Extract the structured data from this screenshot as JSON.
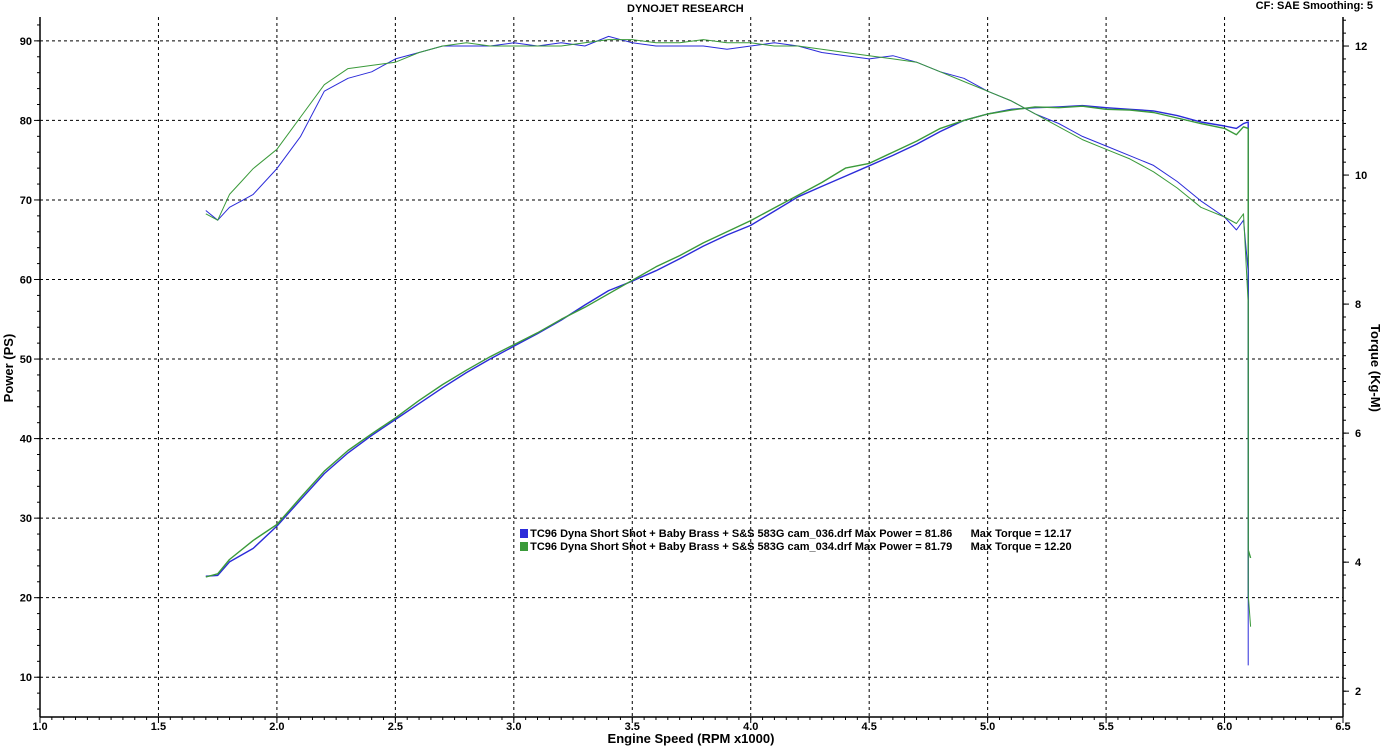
{
  "header": {
    "title": "DYNOJET RESEARCH",
    "cf_info": "CF: SAE  Smoothing: 5"
  },
  "chart_data": {
    "type": "line",
    "title": "DYNOJET RESEARCH",
    "xlabel": "Engine Speed (RPM x1000)",
    "ylabel_left": "Power (PS)",
    "ylabel_right": "Torque (Kg-M)",
    "xlim": [
      1.0,
      6.5
    ],
    "ylim_left": [
      5,
      93
    ],
    "ylim_right": [
      1.6,
      12.45
    ],
    "x_ticks": [
      "1.0",
      "1.5",
      "2.0",
      "2.5",
      "3.0",
      "3.5",
      "4.0",
      "4.5",
      "5.0",
      "5.5",
      "6.0",
      "6.5"
    ],
    "y_ticks_left": [
      "10",
      "20",
      "30",
      "40",
      "50",
      "60",
      "70",
      "80",
      "90"
    ],
    "y_ticks_right": [
      "2",
      "4",
      "6",
      "8",
      "10",
      "12"
    ],
    "grid": true,
    "colors": {
      "blue": "#2b2bd9",
      "green": "#3a9a3a"
    },
    "legend": [
      {
        "name": "TC96 Dyna Short Shot + Baby Brass + S&S 583G cam_036.drf",
        "max_power": "Max Power = 81.86",
        "max_torque": "Max Torque = 12.17",
        "color": "#2b2bd9"
      },
      {
        "name": "TC96 Dyna Short Shot + Baby Brass + S&S 583G cam_034.drf",
        "max_power": "Max Power = 81.79",
        "max_torque": "Max Torque = 12.20",
        "color": "#3a9a3a"
      }
    ],
    "series": [
      {
        "name": "TC96 Dyna Short Shot + Baby Brass + S&S 583G cam_036.drf",
        "quantity": "power",
        "axis": "left",
        "color": "#2b2bd9",
        "x": [
          1.7,
          1.75,
          1.8,
          1.9,
          2.0,
          2.1,
          2.2,
          2.3,
          2.4,
          2.5,
          2.6,
          2.7,
          2.8,
          2.9,
          3.0,
          3.1,
          3.2,
          3.3,
          3.4,
          3.5,
          3.6,
          3.7,
          3.8,
          3.9,
          4.0,
          4.1,
          4.2,
          4.3,
          4.4,
          4.5,
          4.6,
          4.7,
          4.8,
          4.9,
          5.0,
          5.1,
          5.2,
          5.3,
          5.4,
          5.5,
          5.6,
          5.7,
          5.8,
          5.9,
          6.0,
          6.05,
          6.08,
          6.1,
          6.1,
          6.1,
          6.1
        ],
        "y": [
          22.7,
          22.8,
          24.5,
          26.2,
          29.0,
          32.3,
          35.6,
          38.2,
          40.4,
          42.4,
          44.4,
          46.4,
          48.3,
          50.0,
          51.6,
          53.2,
          54.9,
          56.8,
          58.6,
          59.8,
          61.1,
          62.6,
          64.2,
          65.6,
          66.8,
          68.6,
          70.4,
          71.7,
          73.0,
          74.3,
          75.6,
          77.0,
          78.6,
          80.0,
          80.8,
          81.4,
          81.6,
          81.7,
          81.86,
          81.6,
          81.4,
          81.2,
          80.6,
          79.8,
          79.3,
          79.0,
          79.6,
          79.8,
          55.0,
          33.0,
          20.0
        ]
      },
      {
        "name": "TC96 Dyna Short Shot + Baby Brass + S&S 583G cam_034.drf",
        "quantity": "power",
        "axis": "left",
        "color": "#3a9a3a",
        "x": [
          1.7,
          1.75,
          1.8,
          1.9,
          2.0,
          2.1,
          2.2,
          2.3,
          2.4,
          2.5,
          2.6,
          2.7,
          2.8,
          2.9,
          3.0,
          3.1,
          3.2,
          3.3,
          3.4,
          3.5,
          3.6,
          3.7,
          3.8,
          3.9,
          4.0,
          4.1,
          4.2,
          4.3,
          4.4,
          4.5,
          4.6,
          4.7,
          4.8,
          4.9,
          5.0,
          5.1,
          5.2,
          5.3,
          5.4,
          5.5,
          5.6,
          5.7,
          5.8,
          5.9,
          6.0,
          6.05,
          6.08,
          6.1,
          6.1,
          6.1,
          6.11
        ],
        "y": [
          22.6,
          23.0,
          24.8,
          27.2,
          29.2,
          32.6,
          35.9,
          38.5,
          40.6,
          42.6,
          44.8,
          46.8,
          48.6,
          50.3,
          51.8,
          53.3,
          55.0,
          56.5,
          58.2,
          59.9,
          61.6,
          63.0,
          64.6,
          66.0,
          67.4,
          69.0,
          70.6,
          72.2,
          74.0,
          74.6,
          76.0,
          77.4,
          79.0,
          80.0,
          80.8,
          81.3,
          81.7,
          81.6,
          81.79,
          81.4,
          81.3,
          81.0,
          80.3,
          79.6,
          79.0,
          78.2,
          79.2,
          79.0,
          50.0,
          26.0,
          25.0
        ]
      },
      {
        "name": "TC96 Dyna Short Shot + Baby Brass + S&S 583G cam_036.drf",
        "quantity": "torque",
        "axis": "right",
        "color": "#2b2bd9",
        "x": [
          1.7,
          1.75,
          1.8,
          1.85,
          1.9,
          2.0,
          2.1,
          2.2,
          2.3,
          2.4,
          2.5,
          2.6,
          2.7,
          2.8,
          2.9,
          3.0,
          3.1,
          3.2,
          3.3,
          3.4,
          3.5,
          3.6,
          3.7,
          3.8,
          3.9,
          4.0,
          4.1,
          4.2,
          4.3,
          4.4,
          4.5,
          4.6,
          4.7,
          4.8,
          4.9,
          5.0,
          5.1,
          5.2,
          5.3,
          5.4,
          5.5,
          5.6,
          5.7,
          5.8,
          5.9,
          6.0,
          6.05,
          6.08,
          6.1,
          6.1,
          6.1,
          6.1
        ],
        "y": [
          9.45,
          9.3,
          9.5,
          9.6,
          9.7,
          10.1,
          10.6,
          11.3,
          11.5,
          11.6,
          11.8,
          11.9,
          12.0,
          12.0,
          12.0,
          12.05,
          12.0,
          12.05,
          12.0,
          12.15,
          12.05,
          12.0,
          12.0,
          12.0,
          11.95,
          12.0,
          12.05,
          12.0,
          11.9,
          11.85,
          11.8,
          11.85,
          11.75,
          11.6,
          11.5,
          11.3,
          11.15,
          10.95,
          10.8,
          10.6,
          10.45,
          10.3,
          10.15,
          9.9,
          9.6,
          9.35,
          9.15,
          9.3,
          8.5,
          5.0,
          3.0,
          2.4
        ]
      },
      {
        "name": "TC96 Dyna Short Shot + Baby Brass + S&S 583G cam_034.drf",
        "quantity": "torque",
        "axis": "right",
        "color": "#3a9a3a",
        "x": [
          1.7,
          1.75,
          1.8,
          1.85,
          1.9,
          2.0,
          2.1,
          2.2,
          2.3,
          2.4,
          2.5,
          2.6,
          2.7,
          2.8,
          2.9,
          3.0,
          3.1,
          3.2,
          3.3,
          3.4,
          3.5,
          3.6,
          3.7,
          3.8,
          3.9,
          4.0,
          4.1,
          4.2,
          4.3,
          4.4,
          4.5,
          4.6,
          4.7,
          4.8,
          4.9,
          5.0,
          5.1,
          5.2,
          5.3,
          5.4,
          5.5,
          5.6,
          5.7,
          5.8,
          5.9,
          6.0,
          6.05,
          6.08,
          6.1,
          6.1,
          6.1,
          6.11
        ],
        "y": [
          9.4,
          9.3,
          9.7,
          9.9,
          10.1,
          10.4,
          10.9,
          11.4,
          11.65,
          11.7,
          11.75,
          11.9,
          12.0,
          12.05,
          12.0,
          12.0,
          12.0,
          12.0,
          12.05,
          12.1,
          12.1,
          12.05,
          12.05,
          12.1,
          12.05,
          12.05,
          12.0,
          12.0,
          11.95,
          11.9,
          11.85,
          11.8,
          11.75,
          11.6,
          11.45,
          11.3,
          11.15,
          10.95,
          10.75,
          10.55,
          10.4,
          10.25,
          10.05,
          9.8,
          9.5,
          9.35,
          9.25,
          9.4,
          8.0,
          5.0,
          3.5,
          3.0
        ]
      }
    ]
  }
}
